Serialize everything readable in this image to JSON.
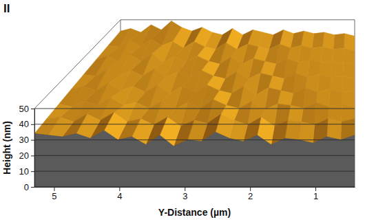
{
  "chart_data": {
    "type": "surface",
    "title": "II",
    "ylabel": "Y-Distance (µm)",
    "zlabel": "Height (nm)",
    "ylim": [
      0.4,
      5.3
    ],
    "yticks": [
      5,
      4,
      3,
      2,
      1
    ],
    "zlim": [
      0,
      50
    ],
    "zticks": [
      0,
      10,
      20,
      30,
      40,
      50
    ],
    "grid": true,
    "color": "#d9861a",
    "heights": [
      [
        34,
        33,
        32,
        34,
        31,
        36,
        30,
        32,
        27,
        33,
        26,
        30,
        29,
        35,
        31,
        29,
        33,
        27,
        31,
        30,
        28,
        32,
        30,
        33
      ],
      [
        35,
        36,
        33,
        38,
        34,
        39,
        33,
        35,
        31,
        36,
        30,
        34,
        32,
        38,
        34,
        31,
        36,
        30,
        34,
        33,
        31,
        35,
        33,
        35
      ],
      [
        36,
        34,
        38,
        35,
        40,
        35,
        37,
        33,
        38,
        32,
        37,
        33,
        39,
        35,
        33,
        38,
        32,
        36,
        35,
        33,
        37,
        34,
        36,
        34
      ],
      [
        37,
        39,
        36,
        41,
        36,
        39,
        35,
        40,
        34,
        39,
        35,
        40,
        36,
        34,
        39,
        33,
        38,
        36,
        34,
        38,
        35,
        37,
        35,
        36
      ],
      [
        38,
        37,
        42,
        37,
        41,
        37,
        42,
        36,
        40,
        36,
        41,
        37,
        35,
        40,
        35,
        39,
        37,
        35,
        39,
        36,
        38,
        36,
        37,
        35
      ],
      [
        39,
        42,
        38,
        43,
        38,
        44,
        37,
        42,
        37,
        42,
        38,
        36,
        41,
        36,
        40,
        38,
        36,
        40,
        37,
        39,
        37,
        38,
        36,
        37
      ],
      [
        40,
        39,
        44,
        39,
        45,
        40,
        43,
        38,
        43,
        39,
        37,
        42,
        37,
        41,
        39,
        37,
        41,
        38,
        40,
        38,
        39,
        37,
        38,
        36
      ],
      [
        41,
        43,
        40,
        46,
        42,
        49,
        44,
        41,
        44,
        40,
        38,
        43,
        38,
        42,
        40,
        38,
        42,
        39,
        41,
        39,
        40,
        38,
        39,
        37
      ]
    ]
  }
}
